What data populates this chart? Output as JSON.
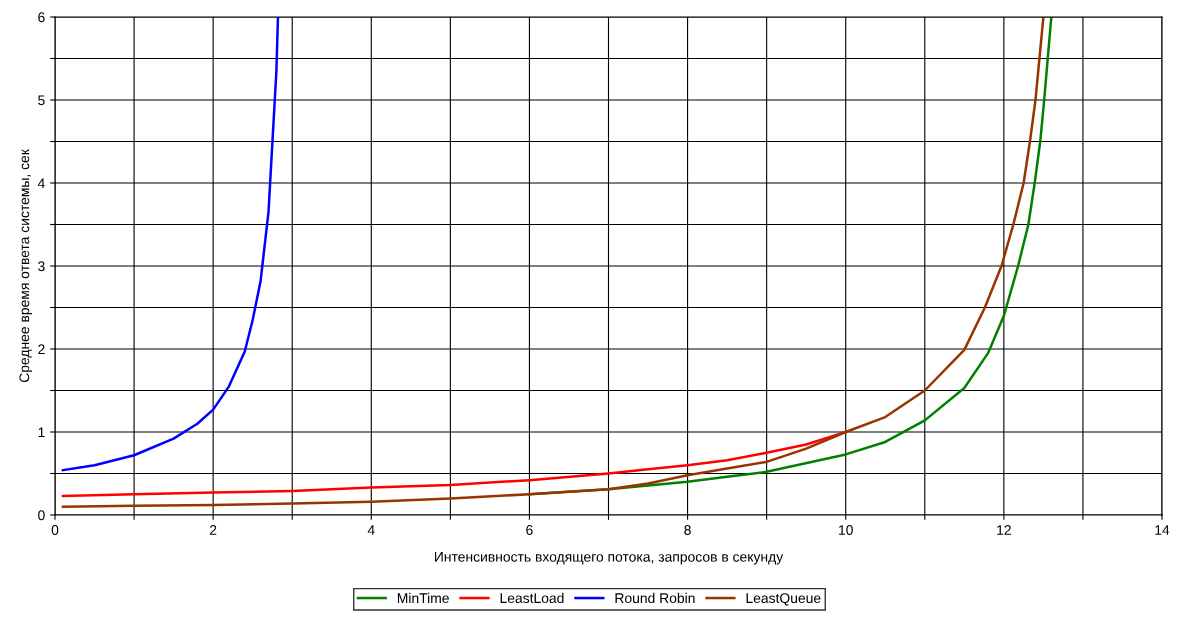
{
  "chart_data": {
    "type": "line",
    "xlabel": "Интенсивность входящего потока, запросов в секунду",
    "ylabel": "Среднее время ответа системы, сек",
    "xlim": [
      0,
      14
    ],
    "ylim": [
      0,
      6
    ],
    "xticks": [
      0,
      {
        "value": 1,
        "label": null
      },
      2,
      {
        "value": 3,
        "label": null
      },
      4,
      {
        "value": 5,
        "label": null
      },
      6,
      {
        "value": 7,
        "label": null
      },
      8,
      {
        "value": 9,
        "label": null
      },
      10,
      {
        "value": 11,
        "label": null
      },
      12,
      {
        "value": 13,
        "label": null
      },
      14
    ],
    "yticks": [
      0,
      {
        "value": 0.5,
        "label": null
      },
      1,
      {
        "value": 1.5,
        "label": null
      },
      2,
      {
        "value": 2.5,
        "label": null
      },
      3,
      {
        "value": 3.5,
        "label": null
      },
      4,
      {
        "value": 4.5,
        "label": null
      },
      5,
      {
        "value": 5.5,
        "label": null
      },
      6
    ],
    "grid": true,
    "legend": "bottom",
    "marker": "none",
    "line_style": "solid",
    "series": [
      {
        "name": "MinTime",
        "color": "#008000",
        "x": [
          6,
          7,
          8,
          8.5,
          9,
          10,
          10.5,
          11,
          11.5,
          11.8,
          12,
          12.18,
          12.31,
          12.39,
          12.46,
          12.51,
          12.6
        ],
        "values": [
          0.25,
          0.31,
          0.4,
          0.46,
          0.52,
          0.73,
          0.88,
          1.14,
          1.53,
          1.95,
          2.4,
          3,
          3.5,
          4,
          4.5,
          5,
          6
        ]
      },
      {
        "name": "LeastLoad",
        "color": "#ff0000",
        "x": [
          0.1,
          1,
          2,
          3,
          4,
          5,
          6,
          7,
          7.5,
          8,
          8.5,
          9,
          9.5,
          10
        ],
        "values": [
          0.23,
          0.25,
          0.27,
          0.29,
          0.33,
          0.36,
          0.42,
          0.5,
          0.55,
          0.6,
          0.66,
          0.75,
          0.85,
          1.0
        ]
      },
      {
        "name": "Round Robin",
        "color": "#0000ff",
        "x": [
          0.1,
          0.5,
          1,
          1.5,
          1.8,
          2,
          2.2,
          2.4,
          2.5,
          2.6,
          2.7,
          2.75,
          2.8,
          2.82
        ],
        "values": [
          0.54,
          0.6,
          0.72,
          0.92,
          1.1,
          1.27,
          1.55,
          1.97,
          2.35,
          2.82,
          3.65,
          4.5,
          5.35,
          6
        ]
      },
      {
        "name": "LeastQueue",
        "color": "#993300",
        "x": [
          0.1,
          1,
          2,
          3,
          4,
          5,
          6,
          7,
          7.5,
          8,
          8.5,
          9,
          9.5,
          10,
          10.5,
          11,
          11.5,
          11.76,
          11.97,
          12.12,
          12.25,
          12.33,
          12.4,
          12.5
        ],
        "values": [
          0.1,
          0.11,
          0.12,
          0.14,
          0.16,
          0.2,
          0.25,
          0.31,
          0.38,
          0.48,
          0.56,
          0.64,
          0.8,
          1.0,
          1.18,
          1.5,
          1.99,
          2.5,
          3,
          3.5,
          4,
          4.5,
          5,
          6
        ]
      }
    ]
  }
}
